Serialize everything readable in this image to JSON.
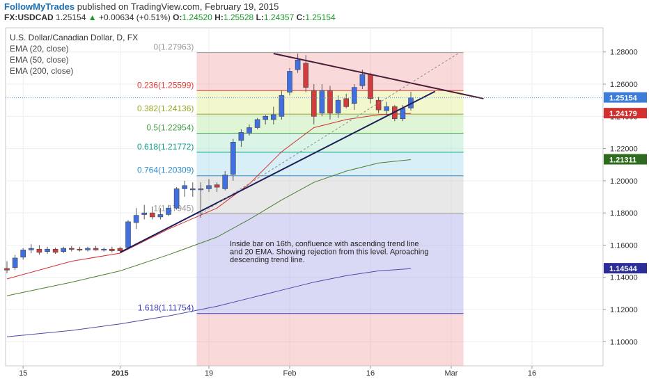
{
  "header": {
    "brand": "FollowMyTrades",
    "published": "published on TradingView.com, February 19, 2015",
    "symbol": "FX:USDCAD",
    "last": "1.25154",
    "change": "+0.00634 (+0.51%)",
    "o_label": "O:",
    "o_val": "1.24520",
    "h_label": "H:",
    "h_val": "1.25528",
    "l_label": "L:",
    "l_val": "1.24357",
    "c_label": "C:",
    "c_val": "1.25154"
  },
  "chart_data": {
    "type": "candlestick",
    "title": "U.S. Dollar/Canadian Dollar, D, FX",
    "indicators": [
      "EMA (20, close)",
      "EMA (50, close)",
      "EMA (200, close)"
    ],
    "yticks": [
      "1.28000",
      "1.26000",
      "1.24000",
      "1.22000",
      "1.20000",
      "1.18000",
      "1.16000",
      "1.14000",
      "1.12000",
      "1.10000"
    ],
    "ylim": [
      1.085,
      1.295
    ],
    "xticks": [
      {
        "label": "15",
        "bar": 2
      },
      {
        "label": "2015",
        "bar": 14
      },
      {
        "label": "19",
        "bar": 25
      },
      {
        "label": "Feb",
        "bar": 35
      },
      {
        "label": "16",
        "bar": 45
      },
      {
        "label": "Mar",
        "bar": 55
      },
      {
        "label": "16",
        "bar": 65
      }
    ],
    "candles": [
      {
        "o": 1.1455,
        "h": 1.15,
        "l": 1.1425,
        "c": 1.1445
      },
      {
        "o": 1.146,
        "h": 1.154,
        "l": 1.1445,
        "c": 1.152
      },
      {
        "o": 1.1525,
        "h": 1.158,
        "l": 1.151,
        "c": 1.157
      },
      {
        "o": 1.157,
        "h": 1.1605,
        "l": 1.155,
        "c": 1.158
      },
      {
        "o": 1.1575,
        "h": 1.16,
        "l": 1.154,
        "c": 1.1555
      },
      {
        "o": 1.156,
        "h": 1.159,
        "l": 1.1545,
        "c": 1.1575
      },
      {
        "o": 1.1575,
        "h": 1.1585,
        "l": 1.1545,
        "c": 1.1555
      },
      {
        "o": 1.156,
        "h": 1.159,
        "l": 1.155,
        "c": 1.158
      },
      {
        "o": 1.158,
        "h": 1.1595,
        "l": 1.156,
        "c": 1.1575
      },
      {
        "o": 1.1575,
        "h": 1.159,
        "l": 1.156,
        "c": 1.157
      },
      {
        "o": 1.157,
        "h": 1.159,
        "l": 1.156,
        "c": 1.158
      },
      {
        "o": 1.158,
        "h": 1.1595,
        "l": 1.1565,
        "c": 1.157
      },
      {
        "o": 1.157,
        "h": 1.1585,
        "l": 1.156,
        "c": 1.1575
      },
      {
        "o": 1.1575,
        "h": 1.159,
        "l": 1.1555,
        "c": 1.1565
      },
      {
        "o": 1.158,
        "h": 1.159,
        "l": 1.1555,
        "c": 1.1565
      },
      {
        "o": 1.1585,
        "h": 1.1755,
        "l": 1.158,
        "c": 1.1745
      },
      {
        "o": 1.174,
        "h": 1.183,
        "l": 1.17,
        "c": 1.1785
      },
      {
        "o": 1.179,
        "h": 1.185,
        "l": 1.176,
        "c": 1.18
      },
      {
        "o": 1.18,
        "h": 1.184,
        "l": 1.176,
        "c": 1.1775
      },
      {
        "o": 1.1775,
        "h": 1.183,
        "l": 1.176,
        "c": 1.179
      },
      {
        "o": 1.179,
        "h": 1.185,
        "l": 1.178,
        "c": 1.183
      },
      {
        "o": 1.183,
        "h": 1.196,
        "l": 1.182,
        "c": 1.195
      },
      {
        "o": 1.195,
        "h": 1.2,
        "l": 1.19,
        "c": 1.197
      },
      {
        "o": 1.195,
        "h": 1.199,
        "l": 1.19,
        "c": 1.195
      },
      {
        "o": 1.195,
        "h": 1.199,
        "l": 1.177,
        "c": 1.195
      },
      {
        "o": 1.195,
        "h": 1.201,
        "l": 1.193,
        "c": 1.197
      },
      {
        "o": 1.1975,
        "h": 1.199,
        "l": 1.193,
        "c": 1.196
      },
      {
        "o": 1.195,
        "h": 1.206,
        "l": 1.194,
        "c": 1.2035
      },
      {
        "o": 1.204,
        "h": 1.226,
        "l": 1.2,
        "c": 1.224
      },
      {
        "o": 1.225,
        "h": 1.232,
        "l": 1.221,
        "c": 1.23
      },
      {
        "o": 1.2295,
        "h": 1.235,
        "l": 1.228,
        "c": 1.233
      },
      {
        "o": 1.233,
        "h": 1.239,
        "l": 1.232,
        "c": 1.238
      },
      {
        "o": 1.238,
        "h": 1.241,
        "l": 1.235,
        "c": 1.24
      },
      {
        "o": 1.238,
        "h": 1.246,
        "l": 1.235,
        "c": 1.241
      },
      {
        "o": 1.24,
        "h": 1.256,
        "l": 1.238,
        "c": 1.253
      },
      {
        "o": 1.255,
        "h": 1.27,
        "l": 1.253,
        "c": 1.268
      },
      {
        "o": 1.269,
        "h": 1.279,
        "l": 1.267,
        "c": 1.275
      },
      {
        "o": 1.273,
        "h": 1.278,
        "l": 1.255,
        "c": 1.258
      },
      {
        "o": 1.256,
        "h": 1.26,
        "l": 1.235,
        "c": 1.24
      },
      {
        "o": 1.242,
        "h": 1.26,
        "l": 1.24,
        "c": 1.256
      },
      {
        "o": 1.256,
        "h": 1.259,
        "l": 1.238,
        "c": 1.242
      },
      {
        "o": 1.242,
        "h": 1.253,
        "l": 1.239,
        "c": 1.25
      },
      {
        "o": 1.251,
        "h": 1.254,
        "l": 1.245,
        "c": 1.246
      },
      {
        "o": 1.248,
        "h": 1.26,
        "l": 1.244,
        "c": 1.258
      },
      {
        "o": 1.259,
        "h": 1.269,
        "l": 1.257,
        "c": 1.266
      },
      {
        "o": 1.266,
        "h": 1.267,
        "l": 1.248,
        "c": 1.251
      },
      {
        "o": 1.25,
        "h": 1.252,
        "l": 1.242,
        "c": 1.244
      },
      {
        "o": 1.2435,
        "h": 1.249,
        "l": 1.241,
        "c": 1.246
      },
      {
        "o": 1.246,
        "h": 1.247,
        "l": 1.237,
        "c": 1.2385
      },
      {
        "o": 1.2385,
        "h": 1.247,
        "l": 1.237,
        "c": 1.245
      },
      {
        "o": 1.2452,
        "h": 1.2553,
        "l": 1.2436,
        "c": 1.2515
      }
    ],
    "ema20": [
      [
        0,
        1.139
      ],
      [
        8,
        1.15
      ],
      [
        14,
        1.155
      ],
      [
        20,
        1.17
      ],
      [
        26,
        1.183
      ],
      [
        30,
        1.198
      ],
      [
        34,
        1.218
      ],
      [
        38,
        1.233
      ],
      [
        42,
        1.238
      ],
      [
        46,
        1.241
      ],
      [
        50,
        1.2418
      ]
    ],
    "ema50": [
      [
        0,
        1.1285
      ],
      [
        8,
        1.137
      ],
      [
        14,
        1.144
      ],
      [
        20,
        1.154
      ],
      [
        26,
        1.165
      ],
      [
        30,
        1.176
      ],
      [
        34,
        1.188
      ],
      [
        38,
        1.199
      ],
      [
        42,
        1.206
      ],
      [
        46,
        1.211
      ],
      [
        50,
        1.2131
      ]
    ],
    "ema200": [
      [
        0,
        1.103
      ],
      [
        8,
        1.107
      ],
      [
        14,
        1.111
      ],
      [
        20,
        1.116
      ],
      [
        26,
        1.122
      ],
      [
        30,
        1.127
      ],
      [
        34,
        1.132
      ],
      [
        38,
        1.137
      ],
      [
        42,
        1.141
      ],
      [
        46,
        1.144
      ],
      [
        50,
        1.1454
      ]
    ],
    "fib": {
      "start_bar": 24,
      "end_bar": 56,
      "levels": [
        {
          "label": "0(1.27963)",
          "value": 1.27963,
          "color": "#9a9a9a"
        },
        {
          "label": "0.236(1.25599)",
          "value": 1.25599,
          "color": "#e53935"
        },
        {
          "label": "0.382(1.24136)",
          "value": 1.24136,
          "color": "#9aa72a"
        },
        {
          "label": "0.5(1.22954)",
          "value": 1.22954,
          "color": "#43a047"
        },
        {
          "label": "0.618(1.21772)",
          "value": 1.21772,
          "color": "#0f9d8a"
        },
        {
          "label": "0.764(1.20309)",
          "value": 1.20309,
          "color": "#2e8cc8"
        },
        {
          "label": "1(1.17945)",
          "value": 1.17945,
          "color": "#9a9a9a"
        },
        {
          "label": "1.618(1.11754)",
          "value": 1.11754,
          "color": "#3b3bbf"
        }
      ]
    },
    "trend_lines": [
      {
        "from": [
          14,
          1.1555
        ],
        "to": [
          53,
          1.2555
        ],
        "color": "#1d1d5c"
      },
      {
        "from": [
          33,
          1.279
        ],
        "to": [
          59,
          1.251
        ],
        "color": "#4a1c3a"
      },
      {
        "from": [
          24,
          1.1795
        ],
        "to": [
          56,
          1.2795
        ],
        "color": "#888888",
        "dashed": true
      }
    ],
    "annotation": "Inside bar on 16th, confluence with ascending trend line and 20 EMA. Showing rejection from this level. Aproaching descending trend line.",
    "price_labels": [
      {
        "text": "1.25154",
        "value": 1.25154,
        "color": "#ffffff",
        "bg": "#3b7dd8"
      },
      {
        "text": "1.24179",
        "value": 1.24179,
        "color": "#ffffff",
        "bg": "#d32f2f"
      },
      {
        "text": "1.21311",
        "value": 1.21311,
        "color": "#ffffff",
        "bg": "#2e6b1e"
      },
      {
        "text": "1.14544",
        "value": 1.14544,
        "color": "#ffffff",
        "bg": "#2d2d9a"
      }
    ],
    "colors": {
      "up": "#3f6fe0",
      "down": "#d23c3c",
      "ema20": "#d32f2f",
      "ema50": "#4c7f32",
      "ema200": "#4a4aa8",
      "last_price_line": "#5b8ee0"
    }
  }
}
